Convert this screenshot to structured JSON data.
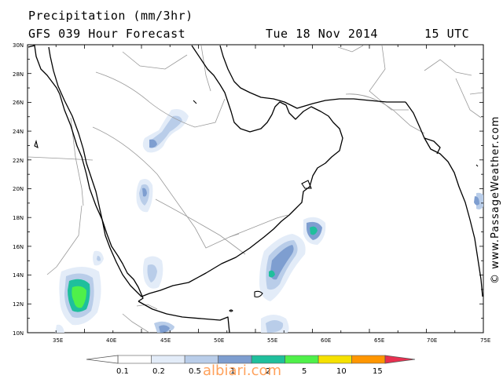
{
  "header": {
    "title": "Precipitation (mm/3hr)",
    "subtitle": "GFS 039 Hour Forecast",
    "date": "Tue 18 Nov 2014",
    "time": "15 UTC"
  },
  "map": {
    "lat_labels": [
      "30N",
      "28N",
      "26N",
      "24N",
      "22N",
      "20N",
      "18N",
      "16N",
      "14N",
      "12N",
      "10N"
    ],
    "lon_labels": [
      "35E",
      "40E",
      "45E",
      "50E",
      "55E",
      "60E",
      "65E",
      "70E",
      "75E"
    ],
    "credit": "© www.PassageWeather.com"
  },
  "legend": {
    "labels": [
      "0.1",
      "0.2",
      "0.5",
      "1",
      "2",
      "5",
      "10",
      "15"
    ],
    "colors": [
      "#ffffff",
      "#e3ecf8",
      "#b9cde9",
      "#7e9ed0",
      "#1fbf9c",
      "#4ff04a",
      "#f5e100",
      "#ff9600",
      "#e83050"
    ]
  },
  "watermark": "albiari.com"
}
